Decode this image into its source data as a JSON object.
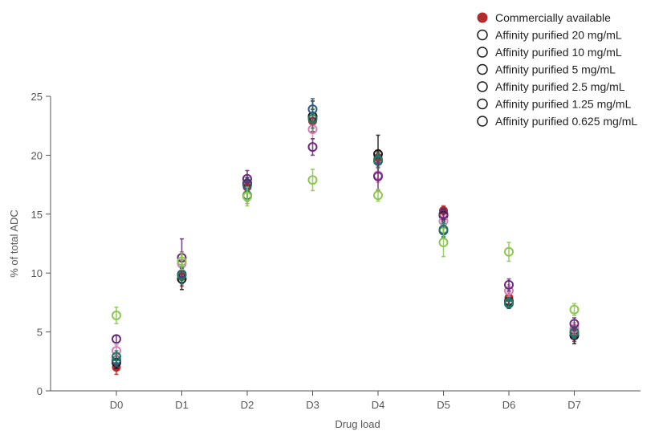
{
  "chart_data": {
    "type": "scatter",
    "xlabel": "Drug load",
    "ylabel": "% of total ADC",
    "categories": [
      "D0",
      "D1",
      "D2",
      "D3",
      "D4",
      "D5",
      "D6",
      "D7"
    ],
    "ylim": [
      0,
      25
    ],
    "yticks": [
      "0",
      "5",
      "10",
      "15",
      "20",
      "25"
    ],
    "grid": false,
    "legend_position": "top-right",
    "error_bars": true,
    "series": [
      {
        "name": "Commercially available",
        "color": "#b52a2a",
        "filled": true,
        "values": [
          2.0,
          9.7,
          17.3,
          22.9,
          19.8,
          15.3,
          7.9,
          4.8
        ],
        "errors": [
          0.6,
          0.8,
          0.4,
          1.0,
          0.5,
          0.4,
          0.5,
          0.6
        ]
      },
      {
        "name": "Affinity purified 20 mg/mL",
        "color": "#1a1a1a",
        "filled": false,
        "values": [
          2.4,
          9.5,
          17.6,
          23.3,
          20.1,
          14.9,
          7.6,
          4.7
        ],
        "errors": [
          0.5,
          0.9,
          0.5,
          1.3,
          1.6,
          0.5,
          0.6,
          0.7
        ]
      },
      {
        "name": "Affinity purified 10 mg/mL",
        "color": "#2e5a8c",
        "filled": false,
        "values": [
          2.6,
          9.9,
          17.5,
          23.9,
          19.5,
          13.6,
          7.4,
          4.9
        ],
        "errors": [
          0.5,
          0.8,
          0.5,
          0.9,
          0.6,
          0.6,
          0.4,
          0.5
        ]
      },
      {
        "name": "Affinity purified 5 mg/mL",
        "color": "#d47fb8",
        "filled": false,
        "values": [
          3.4,
          10.8,
          16.5,
          22.2,
          18.3,
          14.4,
          8.5,
          5.3
        ],
        "errors": [
          0.5,
          1.0,
          0.6,
          0.8,
          0.6,
          0.5,
          0.5,
          0.5
        ]
      },
      {
        "name": "Affinity purified 2.5 mg/mL",
        "color": "#1f7a5c",
        "filled": false,
        "values": [
          2.9,
          9.8,
          16.6,
          23.1,
          19.6,
          13.7,
          7.5,
          5.0
        ],
        "errors": [
          0.5,
          0.7,
          0.5,
          0.8,
          0.6,
          0.6,
          0.4,
          0.5
        ]
      },
      {
        "name": "Affinity purified 1.25 mg/mL",
        "color": "#6a2a7a",
        "filled": false,
        "values": [
          4.4,
          11.3,
          18.0,
          20.7,
          18.2,
          15.0,
          9.0,
          5.7
        ],
        "errors": [
          0.3,
          1.6,
          0.7,
          0.7,
          1.2,
          0.5,
          0.5,
          0.5
        ]
      },
      {
        "name": "Affinity purified 0.625 mg/mL",
        "color": "#8cc84b",
        "filled": false,
        "values": [
          6.4,
          11.0,
          16.5,
          17.9,
          16.6,
          12.6,
          11.8,
          6.9
        ],
        "errors": [
          0.7,
          0.7,
          0.8,
          0.9,
          0.5,
          1.2,
          0.8,
          0.5
        ]
      }
    ]
  }
}
